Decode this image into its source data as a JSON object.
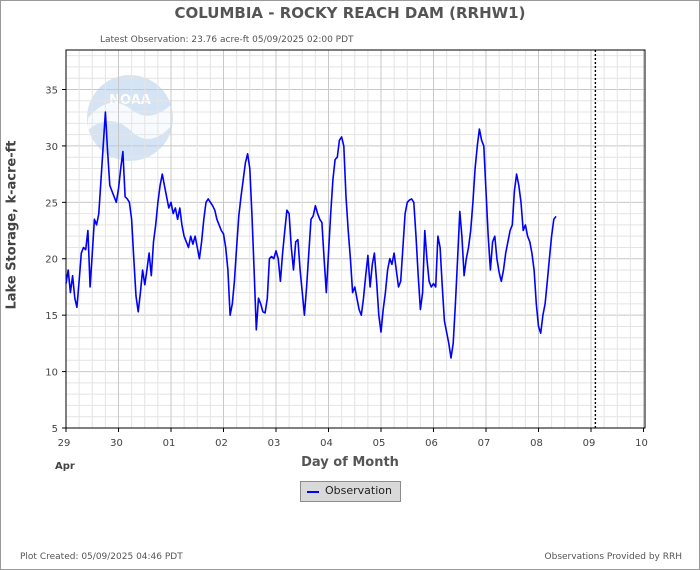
{
  "header": {
    "title": "COLUMBIA - ROCKY REACH DAM  (RRHW1)",
    "latest_observation": "Latest Observation: 23.76 acre-ft 05/09/2025 02:00 PDT"
  },
  "footer": {
    "plot_created": "Plot Created: 05/09/2025 04:46 PDT",
    "provided_by": "Observations Provided by RRH"
  },
  "logo_text": "NOAA",
  "legend": {
    "label": "Observation"
  },
  "colors": {
    "series": "#0000ff",
    "grid_major": "#c8c8c8",
    "grid_minor": "#e4e4e4"
  },
  "chart_data": {
    "type": "line",
    "xlabel": "Day of Month",
    "ylabel": "Lake Storage, k-acre-ft",
    "month_label": "Apr",
    "x_ticks": [
      "29",
      "30",
      "01",
      "02",
      "03",
      "04",
      "05",
      "06",
      "07",
      "08",
      "09",
      "10"
    ],
    "y_ticks": [
      5,
      10,
      15,
      20,
      25,
      30,
      35
    ],
    "ylim": [
      5,
      38.5
    ],
    "xlim": [
      "2025-04-29T00:00",
      "2025-05-10T00:00"
    ],
    "grid": true,
    "legend_position": "bottom-center",
    "marker_line": "2025-05-09T02:00",
    "series": [
      {
        "name": "Observation",
        "x_unit": "hours since 2025-04-29T00:00",
        "points": [
          [
            0,
            17.8
          ],
          [
            1,
            19
          ],
          [
            2,
            17
          ],
          [
            3,
            18.5
          ],
          [
            4,
            16.5
          ],
          [
            5,
            15.7
          ],
          [
            6,
            18
          ],
          [
            7,
            20.5
          ],
          [
            8,
            21
          ],
          [
            9,
            20.8
          ],
          [
            10,
            22.5
          ],
          [
            11,
            17.5
          ],
          [
            12,
            20.5
          ],
          [
            13,
            23.5
          ],
          [
            14,
            23
          ],
          [
            15,
            24
          ],
          [
            16,
            27
          ],
          [
            17,
            30
          ],
          [
            18,
            33
          ],
          [
            19,
            29.5
          ],
          [
            20,
            26.5
          ],
          [
            21,
            26
          ],
          [
            22,
            25.5
          ],
          [
            23,
            25
          ],
          [
            24,
            26.2
          ],
          [
            25,
            28
          ],
          [
            26,
            29.5
          ],
          [
            27,
            25.5
          ],
          [
            28,
            25.3
          ],
          [
            29,
            25
          ],
          [
            30,
            23.5
          ],
          [
            31,
            20
          ],
          [
            32,
            16.7
          ],
          [
            33,
            15.3
          ],
          [
            34,
            17
          ],
          [
            35,
            19
          ],
          [
            36,
            17.7
          ],
          [
            37,
            19
          ],
          [
            38,
            20.5
          ],
          [
            39,
            18.5
          ],
          [
            40,
            21.5
          ],
          [
            41,
            23
          ],
          [
            42,
            25
          ],
          [
            43,
            26.5
          ],
          [
            44,
            27.5
          ],
          [
            45,
            26.5
          ],
          [
            46,
            25.5
          ],
          [
            47,
            24.5
          ],
          [
            48,
            25
          ],
          [
            49,
            24
          ],
          [
            50,
            24.5
          ],
          [
            51,
            23.5
          ],
          [
            52,
            24.5
          ],
          [
            53,
            23
          ],
          [
            54,
            22
          ],
          [
            55,
            21.5
          ],
          [
            56,
            21
          ],
          [
            57,
            22
          ],
          [
            58,
            21.3
          ],
          [
            59,
            22
          ],
          [
            60,
            21
          ],
          [
            61,
            20
          ],
          [
            62,
            21.5
          ],
          [
            63,
            23.5
          ],
          [
            64,
            25
          ],
          [
            65,
            25.3
          ],
          [
            66,
            25
          ],
          [
            67,
            24.7
          ],
          [
            68,
            24.3
          ],
          [
            69,
            23.5
          ],
          [
            70,
            23
          ],
          [
            71,
            22.5
          ],
          [
            72,
            22.2
          ],
          [
            73,
            21
          ],
          [
            74,
            19
          ],
          [
            75,
            15
          ],
          [
            76,
            16
          ],
          [
            77,
            18
          ],
          [
            78,
            21
          ],
          [
            79,
            23.8
          ],
          [
            80,
            25.5
          ],
          [
            81,
            27
          ],
          [
            82,
            28.5
          ],
          [
            83,
            29.3
          ],
          [
            84,
            28
          ],
          [
            85,
            24
          ],
          [
            86,
            19
          ],
          [
            87,
            13.7
          ],
          [
            88,
            16.5
          ],
          [
            89,
            16
          ],
          [
            90,
            15.3
          ],
          [
            91,
            15.2
          ],
          [
            92,
            16.5
          ],
          [
            93,
            20
          ],
          [
            94,
            20.2
          ],
          [
            95,
            20
          ],
          [
            96,
            20.7
          ],
          [
            97,
            20
          ],
          [
            98,
            18
          ],
          [
            99,
            20.5
          ],
          [
            100,
            22.5
          ],
          [
            101,
            24.3
          ],
          [
            102,
            24
          ],
          [
            103,
            21
          ],
          [
            104,
            19
          ],
          [
            105,
            21.5
          ],
          [
            106,
            21.7
          ],
          [
            107,
            19
          ],
          [
            108,
            17
          ],
          [
            109,
            15
          ],
          [
            110,
            17.5
          ],
          [
            111,
            20.5
          ],
          [
            112,
            23.5
          ],
          [
            113,
            23.8
          ],
          [
            114,
            24.7
          ],
          [
            115,
            24
          ],
          [
            116,
            23.5
          ],
          [
            117,
            23.2
          ],
          [
            118,
            20
          ],
          [
            119,
            17
          ],
          [
            120,
            20.5
          ],
          [
            121,
            24
          ],
          [
            122,
            27
          ],
          [
            123,
            28.8
          ],
          [
            124,
            29
          ],
          [
            125,
            30.5
          ],
          [
            126,
            30.8
          ],
          [
            127,
            30
          ],
          [
            128,
            25.5
          ],
          [
            129,
            22.5
          ],
          [
            130,
            20
          ],
          [
            131,
            17
          ],
          [
            132,
            17.5
          ],
          [
            133,
            16.5
          ],
          [
            134,
            15.5
          ],
          [
            135,
            15
          ],
          [
            136,
            16.5
          ],
          [
            137,
            18.5
          ],
          [
            138,
            20.3
          ],
          [
            139,
            17.5
          ],
          [
            140,
            19.5
          ],
          [
            141,
            20.5
          ],
          [
            142,
            18
          ],
          [
            143,
            15
          ],
          [
            144,
            13.5
          ],
          [
            145,
            15.5
          ],
          [
            146,
            17
          ],
          [
            147,
            19
          ],
          [
            148,
            20
          ],
          [
            149,
            19.5
          ],
          [
            150,
            20.5
          ],
          [
            151,
            19
          ],
          [
            152,
            17.5
          ],
          [
            153,
            18
          ],
          [
            154,
            21
          ],
          [
            155,
            24
          ],
          [
            156,
            25
          ],
          [
            157,
            25.2
          ],
          [
            158,
            25.3
          ],
          [
            159,
            25
          ],
          [
            160,
            22
          ],
          [
            161,
            18.5
          ],
          [
            162,
            15.5
          ],
          [
            163,
            17
          ],
          [
            164,
            22.5
          ],
          [
            165,
            20
          ],
          [
            166,
            18
          ],
          [
            167,
            17.5
          ],
          [
            168,
            17.8
          ],
          [
            169,
            17.5
          ],
          [
            170,
            22
          ],
          [
            171,
            21
          ],
          [
            172,
            17.5
          ],
          [
            173,
            14.5
          ],
          [
            174,
            13.5
          ],
          [
            175,
            12.5
          ],
          [
            176,
            11.2
          ],
          [
            177,
            12.5
          ],
          [
            178,
            16
          ],
          [
            179,
            20
          ],
          [
            180,
            24.2
          ],
          [
            181,
            22
          ],
          [
            182,
            18.5
          ],
          [
            183,
            20
          ],
          [
            184,
            21
          ],
          [
            185,
            22.5
          ],
          [
            186,
            25
          ],
          [
            187,
            28
          ],
          [
            188,
            30
          ],
          [
            189,
            31.5
          ],
          [
            190,
            30.5
          ],
          [
            191,
            30
          ],
          [
            192,
            26
          ],
          [
            193,
            22
          ],
          [
            194,
            19
          ],
          [
            195,
            21.5
          ],
          [
            196,
            22
          ],
          [
            197,
            20
          ],
          [
            198,
            18.8
          ],
          [
            199,
            18
          ],
          [
            200,
            19
          ],
          [
            201,
            20.5
          ],
          [
            202,
            21.5
          ],
          [
            203,
            22.5
          ],
          [
            204,
            23
          ],
          [
            205,
            26
          ],
          [
            206,
            27.5
          ],
          [
            207,
            26.5
          ],
          [
            208,
            25
          ],
          [
            209,
            22.5
          ],
          [
            210,
            23
          ],
          [
            211,
            22
          ],
          [
            212,
            21.5
          ],
          [
            213,
            20.5
          ],
          [
            214,
            19
          ],
          [
            215,
            16
          ],
          [
            216,
            14
          ],
          [
            217,
            13.4
          ],
          [
            218,
            15
          ],
          [
            219,
            16
          ],
          [
            220,
            18
          ],
          [
            221,
            20
          ],
          [
            222,
            22
          ],
          [
            223,
            23.5
          ],
          [
            224,
            23.76
          ]
        ]
      }
    ]
  }
}
